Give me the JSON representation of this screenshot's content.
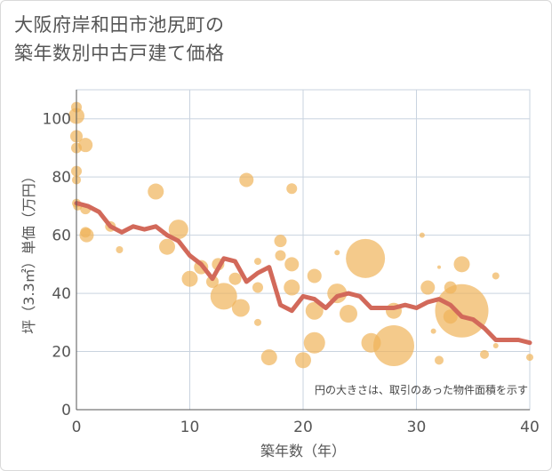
{
  "title_line1": "大阪府岸和田市池尻町の",
  "title_line2": "築年数別中古戸建て価格",
  "chart_data": {
    "type": "scatter",
    "title": "大阪府岸和田市池尻町の 築年数別中古戸建て価格",
    "xlabel": "築年数（年）",
    "ylabel": "坪（3.3㎡）単価（万円）",
    "xlim": [
      0,
      40
    ],
    "ylim": [
      0,
      110
    ],
    "x_ticks": [
      "0",
      "10",
      "20",
      "30",
      "40"
    ],
    "y_ticks": [
      "0",
      "20",
      "40",
      "60",
      "80",
      "100"
    ],
    "grid": true,
    "note": "円の大きさは、取引のあった物件面積を示す",
    "colors": {
      "bubble": "#f0b45a",
      "line": "#d2695a",
      "grid": "#c9d3df"
    },
    "series": [
      {
        "kind": "bubble",
        "points": [
          {
            "x": 0,
            "y": 104,
            "s": 6
          },
          {
            "x": 0,
            "y": 101,
            "s": 9
          },
          {
            "x": 0,
            "y": 94,
            "s": 7
          },
          {
            "x": 0,
            "y": 90,
            "s": 6
          },
          {
            "x": 0,
            "y": 82,
            "s": 6
          },
          {
            "x": 0,
            "y": 79,
            "s": 5
          },
          {
            "x": 0,
            "y": 71,
            "s": 5
          },
          {
            "x": 0.1,
            "y": 70,
            "s": 5
          },
          {
            "x": 0.8,
            "y": 91,
            "s": 8
          },
          {
            "x": 0.8,
            "y": 69,
            "s": 6
          },
          {
            "x": 0.8,
            "y": 61,
            "s": 6
          },
          {
            "x": 0.9,
            "y": 60,
            "s": 8
          },
          {
            "x": 3,
            "y": 63,
            "s": 6
          },
          {
            "x": 3.8,
            "y": 55,
            "s": 4
          },
          {
            "x": 7,
            "y": 75,
            "s": 9
          },
          {
            "x": 8,
            "y": 56,
            "s": 9
          },
          {
            "x": 9,
            "y": 62,
            "s": 11
          },
          {
            "x": 10,
            "y": 45,
            "s": 9
          },
          {
            "x": 11,
            "y": 49,
            "s": 8
          },
          {
            "x": 12,
            "y": 44,
            "s": 7
          },
          {
            "x": 12.5,
            "y": 50,
            "s": 7
          },
          {
            "x": 13,
            "y": 39,
            "s": 15
          },
          {
            "x": 14,
            "y": 45,
            "s": 7
          },
          {
            "x": 14.5,
            "y": 35,
            "s": 10
          },
          {
            "x": 15,
            "y": 79,
            "s": 8
          },
          {
            "x": 16,
            "y": 51,
            "s": 4
          },
          {
            "x": 16,
            "y": 42,
            "s": 6
          },
          {
            "x": 16,
            "y": 30,
            "s": 4
          },
          {
            "x": 17,
            "y": 18,
            "s": 9
          },
          {
            "x": 18,
            "y": 58,
            "s": 7
          },
          {
            "x": 18,
            "y": 53,
            "s": 6
          },
          {
            "x": 19,
            "y": 76,
            "s": 6
          },
          {
            "x": 19,
            "y": 50,
            "s": 8
          },
          {
            "x": 19,
            "y": 42,
            "s": 9
          },
          {
            "x": 20,
            "y": 17,
            "s": 9
          },
          {
            "x": 21,
            "y": 46,
            "s": 8
          },
          {
            "x": 21,
            "y": 34,
            "s": 10
          },
          {
            "x": 21,
            "y": 23,
            "s": 12
          },
          {
            "x": 23,
            "y": 54,
            "s": 3
          },
          {
            "x": 23,
            "y": 40,
            "s": 11
          },
          {
            "x": 24,
            "y": 33,
            "s": 10
          },
          {
            "x": 25.5,
            "y": 52,
            "s": 22
          },
          {
            "x": 26,
            "y": 23,
            "s": 11
          },
          {
            "x": 28,
            "y": 34,
            "s": 9
          },
          {
            "x": 28,
            "y": 22,
            "s": 23
          },
          {
            "x": 30.5,
            "y": 60,
            "s": 3
          },
          {
            "x": 31,
            "y": 42,
            "s": 8
          },
          {
            "x": 31.5,
            "y": 27,
            "s": 3
          },
          {
            "x": 32,
            "y": 17,
            "s": 5
          },
          {
            "x": 32,
            "y": 49,
            "s": 2
          },
          {
            "x": 33,
            "y": 42,
            "s": 7
          },
          {
            "x": 33,
            "y": 32,
            "s": 8
          },
          {
            "x": 34,
            "y": 50,
            "s": 9
          },
          {
            "x": 34,
            "y": 34,
            "s": 30
          },
          {
            "x": 36,
            "y": 19,
            "s": 5
          },
          {
            "x": 37,
            "y": 46,
            "s": 4
          },
          {
            "x": 37,
            "y": 22,
            "s": 3
          },
          {
            "x": 40,
            "y": 18,
            "s": 4
          }
        ]
      },
      {
        "kind": "line",
        "points": [
          {
            "x": 0,
            "y": 71
          },
          {
            "x": 1,
            "y": 70
          },
          {
            "x": 2,
            "y": 68
          },
          {
            "x": 3,
            "y": 63
          },
          {
            "x": 4,
            "y": 61
          },
          {
            "x": 5,
            "y": 63
          },
          {
            "x": 6,
            "y": 62
          },
          {
            "x": 7,
            "y": 63
          },
          {
            "x": 8,
            "y": 60
          },
          {
            "x": 9,
            "y": 58
          },
          {
            "x": 10,
            "y": 53
          },
          {
            "x": 11,
            "y": 50
          },
          {
            "x": 12,
            "y": 45
          },
          {
            "x": 13,
            "y": 52
          },
          {
            "x": 14,
            "y": 51
          },
          {
            "x": 15,
            "y": 44
          },
          {
            "x": 16,
            "y": 47
          },
          {
            "x": 17,
            "y": 49
          },
          {
            "x": 18,
            "y": 36
          },
          {
            "x": 19,
            "y": 34
          },
          {
            "x": 20,
            "y": 39
          },
          {
            "x": 21,
            "y": 38
          },
          {
            "x": 22,
            "y": 35
          },
          {
            "x": 23,
            "y": 39
          },
          {
            "x": 24,
            "y": 40
          },
          {
            "x": 25,
            "y": 39
          },
          {
            "x": 26,
            "y": 35
          },
          {
            "x": 27,
            "y": 35
          },
          {
            "x": 28,
            "y": 35
          },
          {
            "x": 29,
            "y": 36
          },
          {
            "x": 30,
            "y": 35
          },
          {
            "x": 31,
            "y": 37
          },
          {
            "x": 32,
            "y": 38
          },
          {
            "x": 33,
            "y": 36
          },
          {
            "x": 34,
            "y": 32
          },
          {
            "x": 35,
            "y": 31
          },
          {
            "x": 36,
            "y": 28
          },
          {
            "x": 37,
            "y": 24
          },
          {
            "x": 38,
            "y": 24
          },
          {
            "x": 39,
            "y": 24
          },
          {
            "x": 40,
            "y": 23
          }
        ]
      }
    ]
  }
}
